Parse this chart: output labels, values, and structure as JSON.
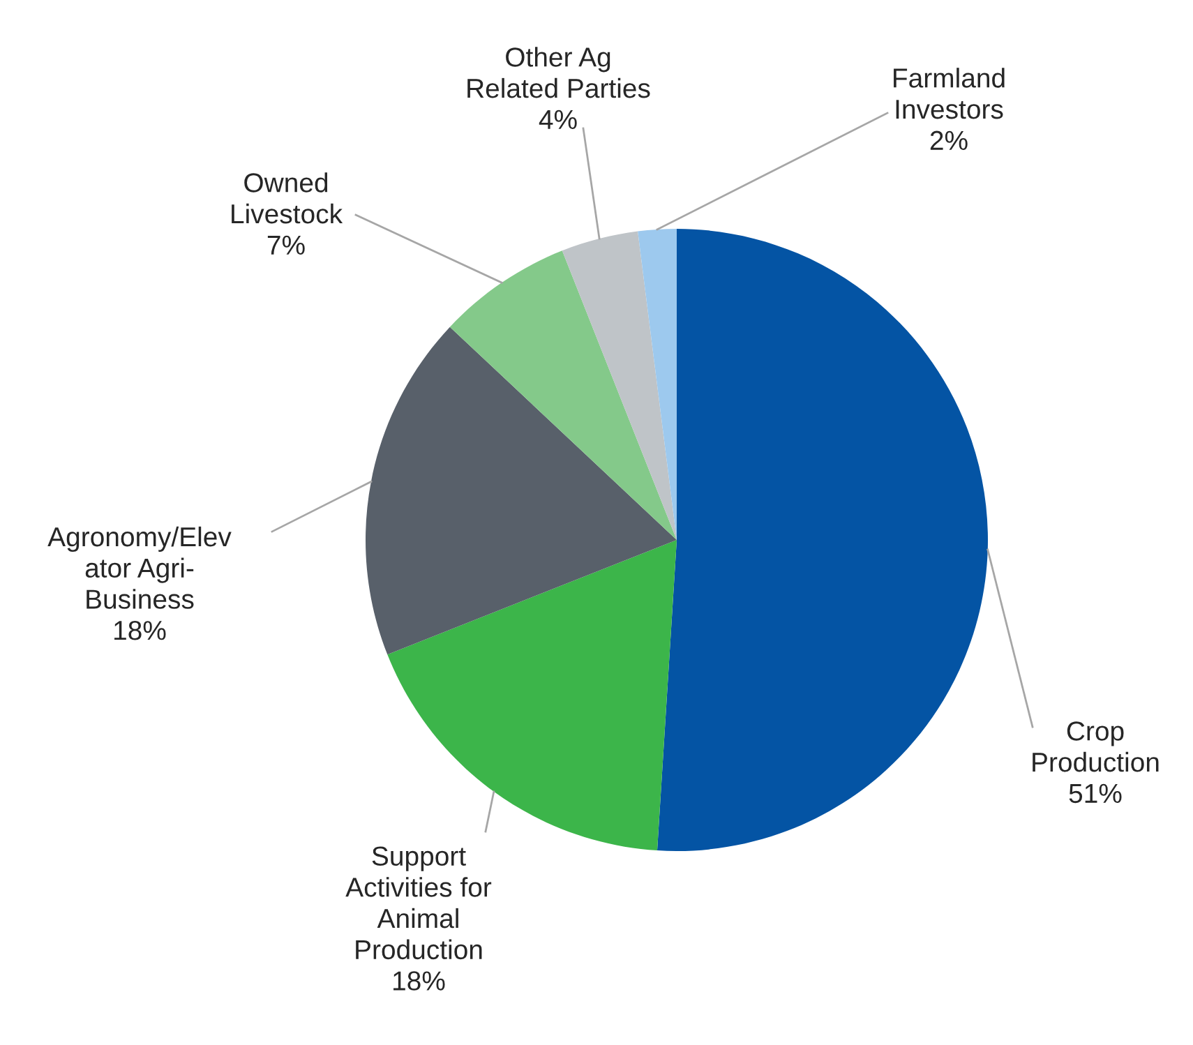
{
  "chart_data": {
    "type": "pie",
    "categories": [
      "Crop\nProduction",
      "Support\nActivities for\nAnimal\nProduction",
      "Agronomy/Elev\nator Agri-\nBusiness",
      "Owned\nLivestock",
      "Other Ag\nRelated Parties",
      "Farmland\nInvestors"
    ],
    "values": [
      51,
      18,
      18,
      7,
      4,
      2
    ],
    "value_labels": [
      "51%",
      "18%",
      "18%",
      "7%",
      "4%",
      "2%"
    ],
    "colors": [
      "#0454a4",
      "#3cb54a",
      "#58606a",
      "#84c98a",
      "#bfc4c8",
      "#9dc9ee"
    ],
    "legend": false
  }
}
